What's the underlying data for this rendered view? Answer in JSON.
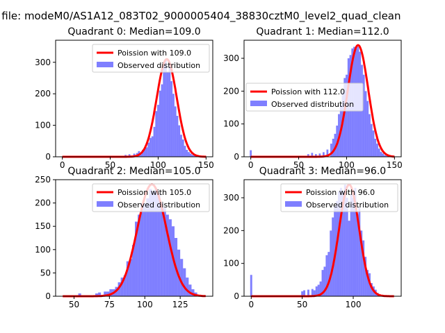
{
  "figure": {
    "suptitle": "n file: modeM0/AS1A12_083T02_9000005404_38830cztM0_level2_quad_clean"
  },
  "chart_data": [
    {
      "type": "bar",
      "title": "Quadrant 0: Median=109.0",
      "xlim": [
        -7,
        157
      ],
      "ylim": [
        0,
        370
      ],
      "xticks": [
        0,
        50,
        100,
        150
      ],
      "yticks": [
        0,
        100,
        200,
        300
      ],
      "legend": {
        "placement": "top-right",
        "entries": [
          "Poission with 109.0",
          "Observed distribution"
        ]
      },
      "line": {
        "name": "Poission with 109.0",
        "mean": 109.0,
        "peak": 310,
        "x_range": [
          0,
          150
        ],
        "color": "#ff0000"
      },
      "bars": {
        "name": "Observed distribution",
        "width": 2.0,
        "color": "#0000ff",
        "opacity": 0.5,
        "x": [
          62,
          66,
          70,
          72,
          75,
          78,
          80,
          82,
          84,
          86,
          88,
          90,
          92,
          94,
          96,
          98,
          100,
          102,
          104,
          106,
          108,
          110,
          112,
          114,
          116,
          118,
          120,
          122,
          124,
          126,
          128,
          130,
          132,
          134,
          136,
          138,
          140
        ],
        "values": [
          3,
          6,
          8,
          4,
          10,
          12,
          18,
          8,
          22,
          25,
          30,
          45,
          60,
          65,
          95,
          145,
          165,
          210,
          230,
          290,
          310,
          270,
          290,
          240,
          200,
          160,
          130,
          100,
          70,
          55,
          35,
          22,
          15,
          10,
          6,
          4,
          2
        ]
      }
    },
    {
      "type": "bar",
      "title": "Quadrant 1: Median=112.0",
      "xlim": [
        -7,
        157
      ],
      "ylim": [
        0,
        355
      ],
      "xticks": [
        0,
        50,
        100,
        150
      ],
      "yticks": [
        0,
        100,
        200,
        300
      ],
      "legend": {
        "placement": "center-right",
        "entries": [
          "Poission with 112.0",
          "Observed distribution"
        ]
      },
      "line": {
        "name": "Poission with 112.0",
        "mean": 112.0,
        "peak": 340,
        "x_range": [
          0,
          150
        ],
        "color": "#ff0000"
      },
      "bars": {
        "name": "Observed distribution",
        "width": 2.0,
        "color": "#0000ff",
        "opacity": 0.5,
        "x": [
          0,
          48,
          60,
          64,
          68,
          72,
          76,
          80,
          84,
          86,
          88,
          90,
          92,
          94,
          96,
          98,
          100,
          102,
          104,
          106,
          108,
          110,
          112,
          114,
          116,
          118,
          120,
          122,
          124,
          126,
          128,
          130,
          132,
          134,
          136,
          138,
          140,
          142
        ],
        "values": [
          20,
          3,
          8,
          12,
          8,
          10,
          14,
          22,
          40,
          55,
          70,
          95,
          130,
          160,
          200,
          240,
          250,
          300,
          310,
          330,
          335,
          330,
          335,
          320,
          280,
          250,
          200,
          170,
          130,
          100,
          80,
          55,
          40,
          25,
          15,
          10,
          5,
          3
        ]
      }
    },
    {
      "type": "bar",
      "title": "Quadrant 2: Median=105.0",
      "xlim": [
        37,
        148
      ],
      "ylim": [
        0,
        250
      ],
      "xticks": [
        50,
        75,
        100,
        125
      ],
      "yticks": [
        0,
        50,
        100,
        150,
        200,
        250
      ],
      "legend": {
        "placement": "top-right",
        "entries": [
          "Poission with 105.0",
          "Observed distribution"
        ]
      },
      "line": {
        "name": "Poission with 105.0",
        "mean": 105.0,
        "peak": 240,
        "x_range": [
          42,
          143
        ],
        "color": "#ff0000"
      },
      "bars": {
        "name": "Observed distribution",
        "width": 2.0,
        "color": "#0000ff",
        "opacity": 0.5,
        "x": [
          54,
          60,
          66,
          68,
          72,
          74,
          76,
          78,
          80,
          82,
          84,
          86,
          88,
          90,
          92,
          94,
          96,
          98,
          100,
          102,
          104,
          106,
          108,
          110,
          112,
          114,
          116,
          118,
          120,
          122,
          124,
          126,
          128,
          130,
          132,
          134,
          136
        ],
        "values": [
          6,
          2,
          6,
          8,
          10,
          10,
          15,
          15,
          20,
          30,
          40,
          45,
          75,
          80,
          110,
          160,
          175,
          200,
          200,
          210,
          230,
          225,
          230,
          220,
          200,
          190,
          175,
          165,
          150,
          125,
          100,
          80,
          60,
          40,
          25,
          15,
          8
        ]
      }
    },
    {
      "type": "bar",
      "title": "Quadrant 3: Median=96.0",
      "xlim": [
        -7,
        147
      ],
      "ylim": [
        0,
        355
      ],
      "xticks": [
        0,
        50,
        100
      ],
      "yticks": [
        0,
        100,
        200,
        300
      ],
      "legend": {
        "placement": "top-right",
        "entries": [
          "Poission with 96.0",
          "Observed distribution"
        ]
      },
      "line": {
        "name": "Poission with 96.0",
        "mean": 96.0,
        "peak": 340,
        "x_range": [
          0,
          140
        ],
        "color": "#ff0000"
      },
      "bars": {
        "name": "Observed distribution",
        "width": 2.0,
        "color": "#0000ff",
        "opacity": 0.5,
        "x": [
          0,
          50,
          52,
          56,
          60,
          62,
          64,
          66,
          68,
          70,
          72,
          74,
          76,
          78,
          80,
          82,
          84,
          86,
          88,
          90,
          92,
          94,
          96,
          98,
          100,
          102,
          104,
          106,
          108,
          110,
          112,
          114,
          116,
          118,
          120,
          122,
          124,
          126,
          128
        ],
        "values": [
          65,
          15,
          18,
          20,
          22,
          18,
          30,
          35,
          45,
          80,
          90,
          125,
          135,
          200,
          240,
          275,
          290,
          320,
          330,
          320,
          340,
          300,
          230,
          310,
          300,
          330,
          250,
          270,
          200,
          170,
          120,
          80,
          70,
          40,
          30,
          20,
          10,
          5,
          3
        ]
      }
    }
  ]
}
